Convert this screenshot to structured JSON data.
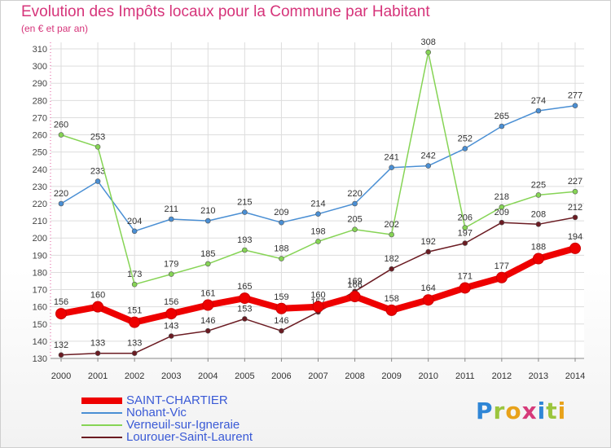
{
  "header": {
    "title": "Evolution des Impôts locaux pour la Commune par Habitant",
    "subtitle": "(en € et par an)"
  },
  "logo": {
    "text": "Proxiti"
  },
  "chart_data": {
    "type": "line",
    "title": "Evolution des Impôts locaux pour la Commune par Habitant",
    "subtitle": "(en € et par an)",
    "x": [
      "2000",
      "2001",
      "2002",
      "2003",
      "2004",
      "2005",
      "2006",
      "2007",
      "2008",
      "2009",
      "2010",
      "2011",
      "2012",
      "2013",
      "2014"
    ],
    "ylim": [
      130,
      310
    ],
    "yticks": [
      130,
      140,
      150,
      160,
      170,
      180,
      190,
      200,
      210,
      220,
      230,
      240,
      250,
      260,
      270,
      280,
      290,
      300,
      310
    ],
    "grid": true,
    "legend_position": "bottom-left",
    "series": [
      {
        "name": "SAINT-CHARTIER",
        "color": "#ee0000",
        "width": 8,
        "values": [
          156,
          160,
          151,
          156,
          161,
          165,
          159,
          160,
          166,
          158,
          164,
          171,
          177,
          188,
          194
        ]
      },
      {
        "name": "Nohant-Vic",
        "color": "#4a8fd4",
        "width": 1.5,
        "values": [
          220,
          233,
          204,
          211,
          210,
          215,
          209,
          214,
          220,
          241,
          242,
          252,
          265,
          274,
          277
        ]
      },
      {
        "name": "Verneuil-sur-Igneraie",
        "color": "#86d455",
        "width": 1.5,
        "values": [
          260,
          253,
          173,
          179,
          185,
          193,
          188,
          198,
          205,
          202,
          308,
          206,
          218,
          225,
          227
        ]
      },
      {
        "name": "Lourouer-Saint-Laurent",
        "color": "#6b1b22",
        "width": 1.5,
        "values": [
          132,
          133,
          133,
          143,
          146,
          153,
          146,
          157,
          169,
          182,
          192,
          197,
          209,
          208,
          212
        ]
      }
    ],
    "point_labels": {
      "SAINT-CHARTIER": [
        "156",
        "160",
        "151",
        "156",
        "161",
        "165",
        "159",
        "160",
        "166",
        "158",
        "164",
        "171",
        "177",
        "188",
        "194"
      ],
      "Nohant-Vic": [
        "220",
        "233",
        "204",
        "211",
        "210",
        "215",
        "209",
        "214",
        "220",
        "241",
        "242",
        "252",
        "265",
        "274",
        "277"
      ],
      "Verneuil-sur-Igneraie": [
        "260",
        "253",
        "173",
        "179",
        "185",
        "193",
        "188",
        "198",
        "205",
        "202",
        "308",
        "206",
        "218",
        "225",
        "227"
      ],
      "Lourouer-Saint-Laurent": [
        "132",
        "133",
        "133",
        "143",
        "146",
        "153",
        "146",
        "157",
        "169",
        "182",
        "192",
        "197",
        "209",
        "208",
        "212"
      ]
    }
  }
}
